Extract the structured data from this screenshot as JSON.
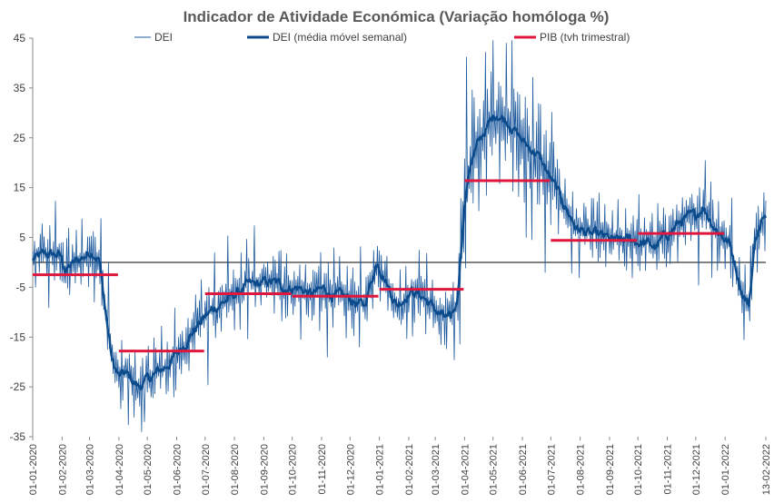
{
  "chart_data": {
    "type": "line",
    "title": "Indicador de Atividade Económica (Variação homóloga %)",
    "xlabel": "",
    "ylabel": "",
    "ylim": [
      -35,
      45
    ],
    "yticks": [
      "45",
      "35",
      "25",
      "15",
      "5",
      "-5",
      "-15",
      "-25",
      "-35"
    ],
    "x_range": [
      "2020-01-01",
      "2022-02-13"
    ],
    "xticks": [
      "01-01-2020",
      "01-02-2020",
      "01-03-2020",
      "01-04-2020",
      "01-05-2020",
      "01-06-2020",
      "01-07-2020",
      "01-08-2020",
      "01-09-2020",
      "01-10-2020",
      "01-11-2020",
      "01-12-2020",
      "01-01-2021",
      "01-02-2021",
      "01-03-2021",
      "01-04-2021",
      "01-05-2021",
      "01-06-2021",
      "01-07-2021",
      "01-08-2021",
      "01-09-2021",
      "01-10-2021",
      "01-11-2021",
      "01-12-2021",
      "01-01-2022",
      "13-02-2022"
    ],
    "legend": {
      "position": "top",
      "entries": [
        "DEI",
        "DEI (média móvel semanal)",
        "PIB (tvh trimestral)"
      ]
    },
    "colors": {
      "dei_daily": "#1F5B9E",
      "dei_ma": "#0B4A8B",
      "pib": "#E0173D",
      "zero_line": "#000000"
    },
    "series": [
      {
        "name": "DEI (média móvel semanal)",
        "style": "line-thick",
        "x": [
          "2020-01-01",
          "2020-01-15",
          "2020-01-29",
          "2020-02-05",
          "2020-02-19",
          "2020-03-04",
          "2020-03-11",
          "2020-03-18",
          "2020-03-25",
          "2020-04-01",
          "2020-04-08",
          "2020-04-22",
          "2020-05-06",
          "2020-05-20",
          "2020-06-03",
          "2020-06-17",
          "2020-07-01",
          "2020-07-15",
          "2020-07-29",
          "2020-08-12",
          "2020-08-26",
          "2020-09-09",
          "2020-09-23",
          "2020-10-07",
          "2020-10-21",
          "2020-11-04",
          "2020-11-18",
          "2020-12-02",
          "2020-12-16",
          "2020-12-23",
          "2020-12-30",
          "2021-01-06",
          "2021-01-13",
          "2021-01-20",
          "2021-02-03",
          "2021-02-17",
          "2021-03-03",
          "2021-03-10",
          "2021-03-17",
          "2021-03-24",
          "2021-03-31",
          "2021-04-07",
          "2021-04-21",
          "2021-05-05",
          "2021-05-19",
          "2021-06-02",
          "2021-06-16",
          "2021-06-30",
          "2021-07-14",
          "2021-07-28",
          "2021-08-11",
          "2021-08-25",
          "2021-09-08",
          "2021-09-22",
          "2021-10-06",
          "2021-10-20",
          "2021-11-03",
          "2021-11-17",
          "2021-12-01",
          "2021-12-08",
          "2021-12-22",
          "2022-01-05",
          "2022-01-12",
          "2022-01-19",
          "2022-01-26",
          "2022-02-02",
          "2022-02-09",
          "2022-02-13"
        ],
        "values": [
          0.5,
          1.5,
          1.5,
          -1.5,
          0.5,
          2.5,
          1.0,
          -10.0,
          -20.0,
          -23.0,
          -22.5,
          -25.0,
          -23.0,
          -21.0,
          -18.0,
          -14.0,
          -11.0,
          -8.5,
          -7.0,
          -5.0,
          -4.5,
          -4.0,
          -5.0,
          -5.0,
          -6.5,
          -5.5,
          -7.0,
          -7.5,
          -9.0,
          -4.0,
          0.5,
          -2.5,
          -6.0,
          -8.5,
          -5.5,
          -7.0,
          -10.0,
          -11.0,
          -12.0,
          -8.0,
          10.0,
          20.0,
          26.0,
          30.0,
          28.0,
          24.0,
          22.0,
          17.0,
          12.0,
          7.0,
          5.5,
          5.0,
          4.0,
          4.5,
          4.0,
          3.0,
          6.0,
          8.5,
          9.0,
          11.5,
          7.0,
          4.0,
          -0.5,
          -6.0,
          -8.5,
          5.0,
          8.5,
          8.0
        ]
      },
      {
        "name": "PIB (tvh trimestral)",
        "style": "segments",
        "segments": [
          {
            "x_start": "2020-01-01",
            "x_end": "2020-03-31",
            "value": -2.5
          },
          {
            "x_start": "2020-04-01",
            "x_end": "2020-06-30",
            "value": -17.8
          },
          {
            "x_start": "2020-07-01",
            "x_end": "2020-09-30",
            "value": -6.3
          },
          {
            "x_start": "2020-10-01",
            "x_end": "2020-12-31",
            "value": -6.8
          },
          {
            "x_start": "2021-01-01",
            "x_end": "2021-03-31",
            "value": -5.4
          },
          {
            "x_start": "2021-04-01",
            "x_end": "2021-06-30",
            "value": 16.4
          },
          {
            "x_start": "2021-07-01",
            "x_end": "2021-09-30",
            "value": 4.4
          },
          {
            "x_start": "2021-10-01",
            "x_end": "2021-12-31",
            "value": 5.8
          }
        ]
      }
    ],
    "series_note_dei_daily": "DEI daily series is noisy around the weekly moving average (amplitude up to ~±10 pp); drawn as thin line.",
    "dei_daily_extremes": {
      "max": 44,
      "max_date": "2021-05-15",
      "min": -32,
      "min_date": "2020-04-28"
    }
  }
}
